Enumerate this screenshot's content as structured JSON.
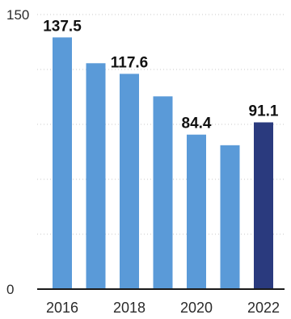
{
  "chart_data": {
    "type": "bar",
    "categories": [
      "2016",
      "2017",
      "2018",
      "2019",
      "2020",
      "2021",
      "2022"
    ],
    "x_tick_labels": [
      "2016",
      "2018",
      "2020",
      "2022"
    ],
    "values": [
      137.5,
      123.4,
      117.6,
      105.3,
      84.4,
      78.6,
      91.1
    ],
    "data_labels": [
      {
        "category": "2016",
        "text": "137.5"
      },
      {
        "category": "2018",
        "text": "117.6"
      },
      {
        "category": "2020",
        "text": "84.4"
      },
      {
        "category": "2022",
        "text": "91.1"
      }
    ],
    "y_ticks": [
      "0",
      "150"
    ],
    "ylim": [
      0,
      150
    ],
    "title": "",
    "xlabel": "",
    "ylabel": "",
    "grid": "dotted horizontal",
    "colors": {
      "bar": "#5a9ad8",
      "highlight_bar": "#2a3a7e",
      "axis": "#1a1a1a",
      "grid": "#c8c8c8"
    },
    "highlight_category": "2022"
  }
}
